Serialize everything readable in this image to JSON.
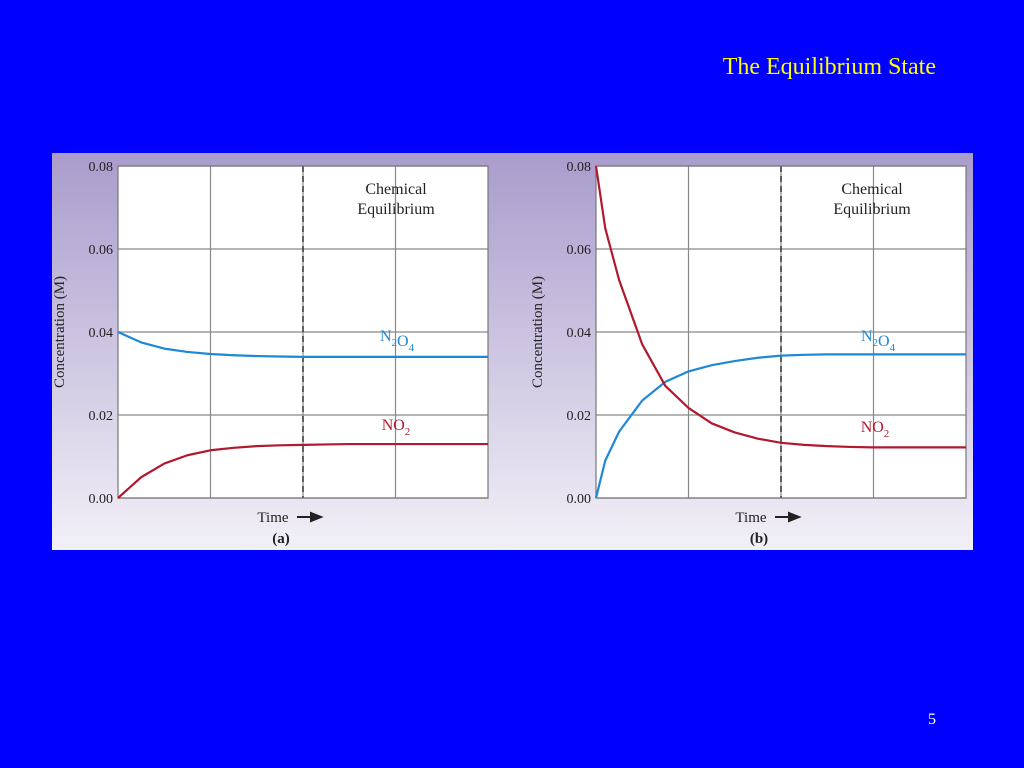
{
  "slide": {
    "title": "The Equilibrium State",
    "page_number": 5
  },
  "chart_data": [
    {
      "type": "line",
      "panel_label": "(a)",
      "annotation": [
        "Chemical",
        "Equilibrium"
      ],
      "x_label": "Time",
      "y_label": "Concentration (M)",
      "xlim": [
        0,
        4
      ],
      "ylim": [
        0,
        0.08
      ],
      "yticks": [
        {
          "value": 0,
          "label": "0.00"
        },
        {
          "value": 0.02,
          "label": "0.02"
        },
        {
          "value": 0.04,
          "label": "0.04"
        },
        {
          "value": 0.06,
          "label": "0.06"
        },
        {
          "value": 0.08,
          "label": "0.08"
        }
      ],
      "grid": true,
      "equilibrium_time": 2,
      "x": [
        0,
        0.25,
        0.5,
        0.75,
        1,
        1.25,
        1.5,
        1.75,
        2,
        2.25,
        2.5,
        2.75,
        3,
        3.25,
        3.5,
        3.75,
        4
      ],
      "series": [
        {
          "name": "N2O4",
          "color": "#1e88d8",
          "values": [
            0.04,
            0.0375,
            0.036,
            0.0352,
            0.0347,
            0.0344,
            0.0342,
            0.0341,
            0.034,
            0.034,
            0.034,
            0.034,
            0.034,
            0.034,
            0.034,
            0.034,
            0.034
          ]
        },
        {
          "name": "NO2",
          "color": "#b0192e",
          "values": [
            0,
            0.005,
            0.0083,
            0.0103,
            0.0115,
            0.0121,
            0.0125,
            0.0127,
            0.0128,
            0.0129,
            0.013,
            0.013,
            0.013,
            0.013,
            0.013,
            0.013,
            0.013
          ]
        }
      ]
    },
    {
      "type": "line",
      "panel_label": "(b)",
      "annotation": [
        "Chemical",
        "Equilibrium"
      ],
      "x_label": "Time",
      "y_label": "Concentration (M)",
      "xlim": [
        0,
        4
      ],
      "ylim": [
        0,
        0.08
      ],
      "yticks": [
        {
          "value": 0,
          "label": "0.00"
        },
        {
          "value": 0.02,
          "label": "0.02"
        },
        {
          "value": 0.04,
          "label": "0.04"
        },
        {
          "value": 0.06,
          "label": "0.06"
        },
        {
          "value": 0.08,
          "label": "0.08"
        }
      ],
      "grid": true,
      "equilibrium_time": 2,
      "x": [
        0,
        0.1,
        0.25,
        0.5,
        0.75,
        1,
        1.25,
        1.5,
        1.75,
        2,
        2.25,
        2.5,
        2.75,
        3,
        3.25,
        3.5,
        3.75,
        4
      ],
      "series": [
        {
          "name": "N2O4",
          "color": "#1e88d8",
          "values": [
            0,
            0.009,
            0.016,
            0.0235,
            0.028,
            0.0305,
            0.032,
            0.033,
            0.0338,
            0.0343,
            0.0345,
            0.0346,
            0.0346,
            0.0346,
            0.0346,
            0.0346,
            0.0346,
            0.0346
          ]
        },
        {
          "name": "NO2",
          "color": "#b0192e",
          "values": [
            0.08,
            0.065,
            0.0525,
            0.037,
            0.027,
            0.0217,
            0.018,
            0.0158,
            0.0143,
            0.0133,
            0.0128,
            0.0125,
            0.0123,
            0.0122,
            0.0122,
            0.0122,
            0.0122,
            0.0122
          ]
        }
      ]
    }
  ]
}
